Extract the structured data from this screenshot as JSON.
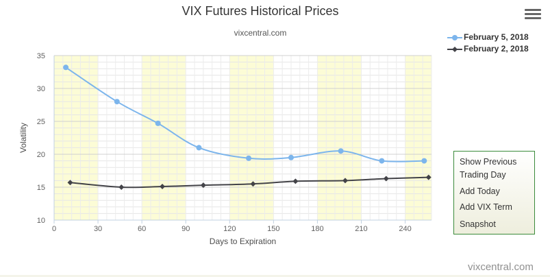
{
  "chart_data": {
    "type": "line",
    "title": "VIX Futures Historical Prices",
    "subtitle": "vixcentral.com",
    "xlabel": "Days to Expiration",
    "ylabel": "Volatility",
    "xlim": [
      0,
      258
    ],
    "ylim": [
      10,
      35
    ],
    "xticks": [
      0,
      30,
      60,
      90,
      120,
      150,
      180,
      210,
      240
    ],
    "yticks": [
      10,
      15,
      20,
      25,
      30,
      35
    ],
    "grid": true,
    "band_color": "#fcfcd6",
    "legend_position": "top-right",
    "series": [
      {
        "name": "February 5, 2018",
        "color": "#7cb5ec",
        "marker": "circle",
        "x": [
          8,
          43,
          71,
          99,
          133,
          162,
          196,
          224,
          253
        ],
        "y": [
          33.2,
          28.0,
          24.7,
          21.0,
          19.4,
          19.5,
          20.5,
          19.0,
          19.0
        ]
      },
      {
        "name": "February 2, 2018",
        "color": "#434348",
        "marker": "diamond",
        "x": [
          11,
          46,
          74,
          102,
          136,
          165,
          199,
          227,
          256
        ],
        "y": [
          15.7,
          15.0,
          15.1,
          15.3,
          15.5,
          15.9,
          16.0,
          16.3,
          16.5
        ]
      }
    ]
  },
  "menu": {
    "icon": "hamburger-menu-icon",
    "items": [
      "Show Previous Trading Day",
      "Add Today",
      "Add VIX Term",
      "Snapshot"
    ]
  },
  "credit": "vixcentral.com"
}
